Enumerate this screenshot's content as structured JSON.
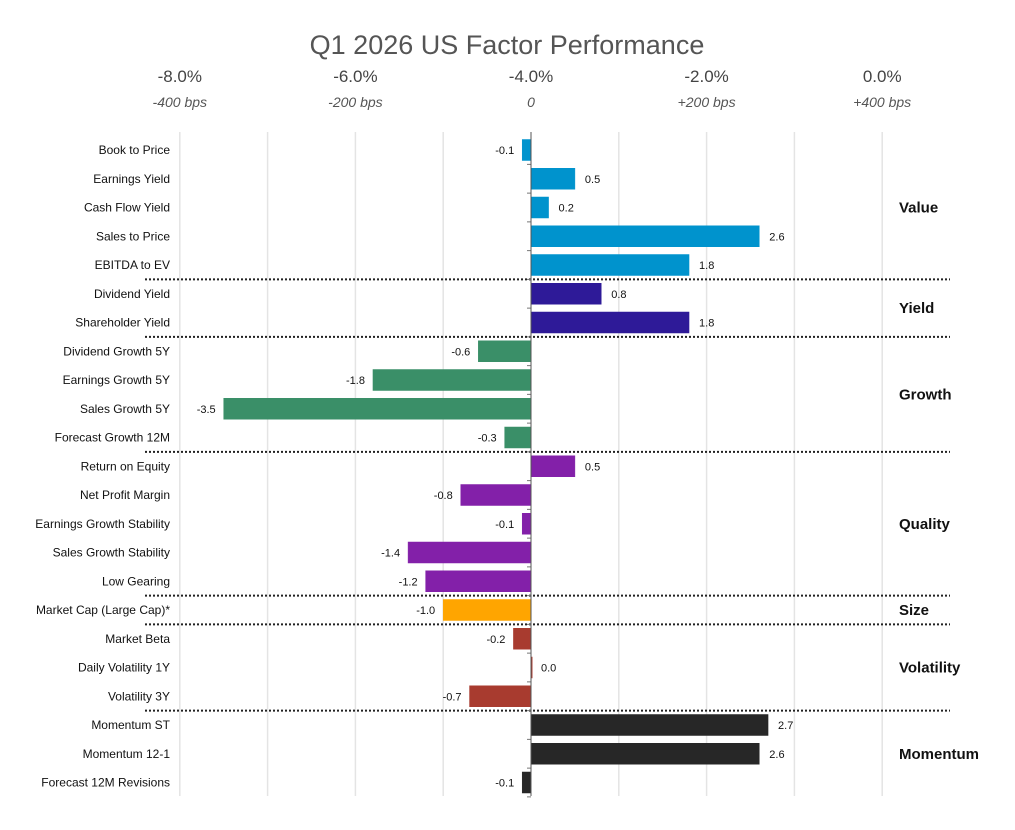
{
  "chart_data": {
    "type": "bar",
    "orientation": "horizontal",
    "title": "Q1 2026 US Factor Performance",
    "xlabel": "",
    "ylabel": "",
    "xlim": [
      -4.0,
      4.0
    ],
    "grid": true,
    "legend": "none",
    "top_axis_ticks": [
      {
        "value": -4.0,
        "pct_label": "-8.0%",
        "bps_label": "-400 bps"
      },
      {
        "value": -2.0,
        "pct_label": "-6.0%",
        "bps_label": "-200 bps"
      },
      {
        "value": 0.0,
        "pct_label": "-4.0%",
        "bps_label": "0"
      },
      {
        "value": 2.0,
        "pct_label": "-2.0%",
        "bps_label": "+200 bps"
      },
      {
        "value": 4.0,
        "pct_label": "0.0%",
        "bps_label": "+400 bps"
      }
    ],
    "gridlines": [
      -4,
      -3,
      -2,
      -1,
      1,
      2,
      3,
      4
    ],
    "groups": [
      {
        "name": "Value",
        "color": "#0093CD",
        "factors": [
          {
            "label": "Book to Price",
            "value": -0.1
          },
          {
            "label": "Earnings Yield",
            "value": 0.5
          },
          {
            "label": "Cash Flow Yield",
            "value": 0.2
          },
          {
            "label": "Sales to Price",
            "value": 2.6
          },
          {
            "label": "EBITDA to EV",
            "value": 1.8
          }
        ]
      },
      {
        "name": "Yield",
        "color": "#2E1A98",
        "factors": [
          {
            "label": "Dividend Yield",
            "value": 0.8
          },
          {
            "label": "Shareholder Yield",
            "value": 1.8
          }
        ]
      },
      {
        "name": "Growth",
        "color": "#3A8F68",
        "factors": [
          {
            "label": "Dividend Growth 5Y",
            "value": -0.6
          },
          {
            "label": "Earnings Growth 5Y",
            "value": -1.8
          },
          {
            "label": "Sales Growth 5Y",
            "value": -3.5
          },
          {
            "label": "Forecast Growth 12M",
            "value": -0.3
          }
        ]
      },
      {
        "name": "Quality",
        "color": "#8320A9",
        "factors": [
          {
            "label": "Return on Equity",
            "value": 0.5
          },
          {
            "label": "Net Profit Margin",
            "value": -0.8
          },
          {
            "label": "Earnings Growth Stability",
            "value": -0.1
          },
          {
            "label": "Sales Growth Stability",
            "value": -1.4
          },
          {
            "label": "Low Gearing",
            "value": -1.2
          }
        ]
      },
      {
        "name": "Size",
        "color": "#FFA500",
        "factors": [
          {
            "label": "Market Cap (Large Cap)*",
            "value": -1.0
          }
        ]
      },
      {
        "name": "Volatility",
        "color": "#A83B2F",
        "factors": [
          {
            "label": "Market Beta",
            "value": -0.2
          },
          {
            "label": "Daily Volatility 1Y",
            "value": 0.0
          },
          {
            "label": "Volatility 3Y",
            "value": -0.7
          }
        ]
      },
      {
        "name": "Momentum",
        "color": "#272727",
        "factors": [
          {
            "label": "Momentum ST",
            "value": 2.7
          },
          {
            "label": "Momentum 12-1",
            "value": 2.6
          },
          {
            "label": "Forecast 12M Revisions",
            "value": -0.1
          }
        ]
      }
    ]
  }
}
